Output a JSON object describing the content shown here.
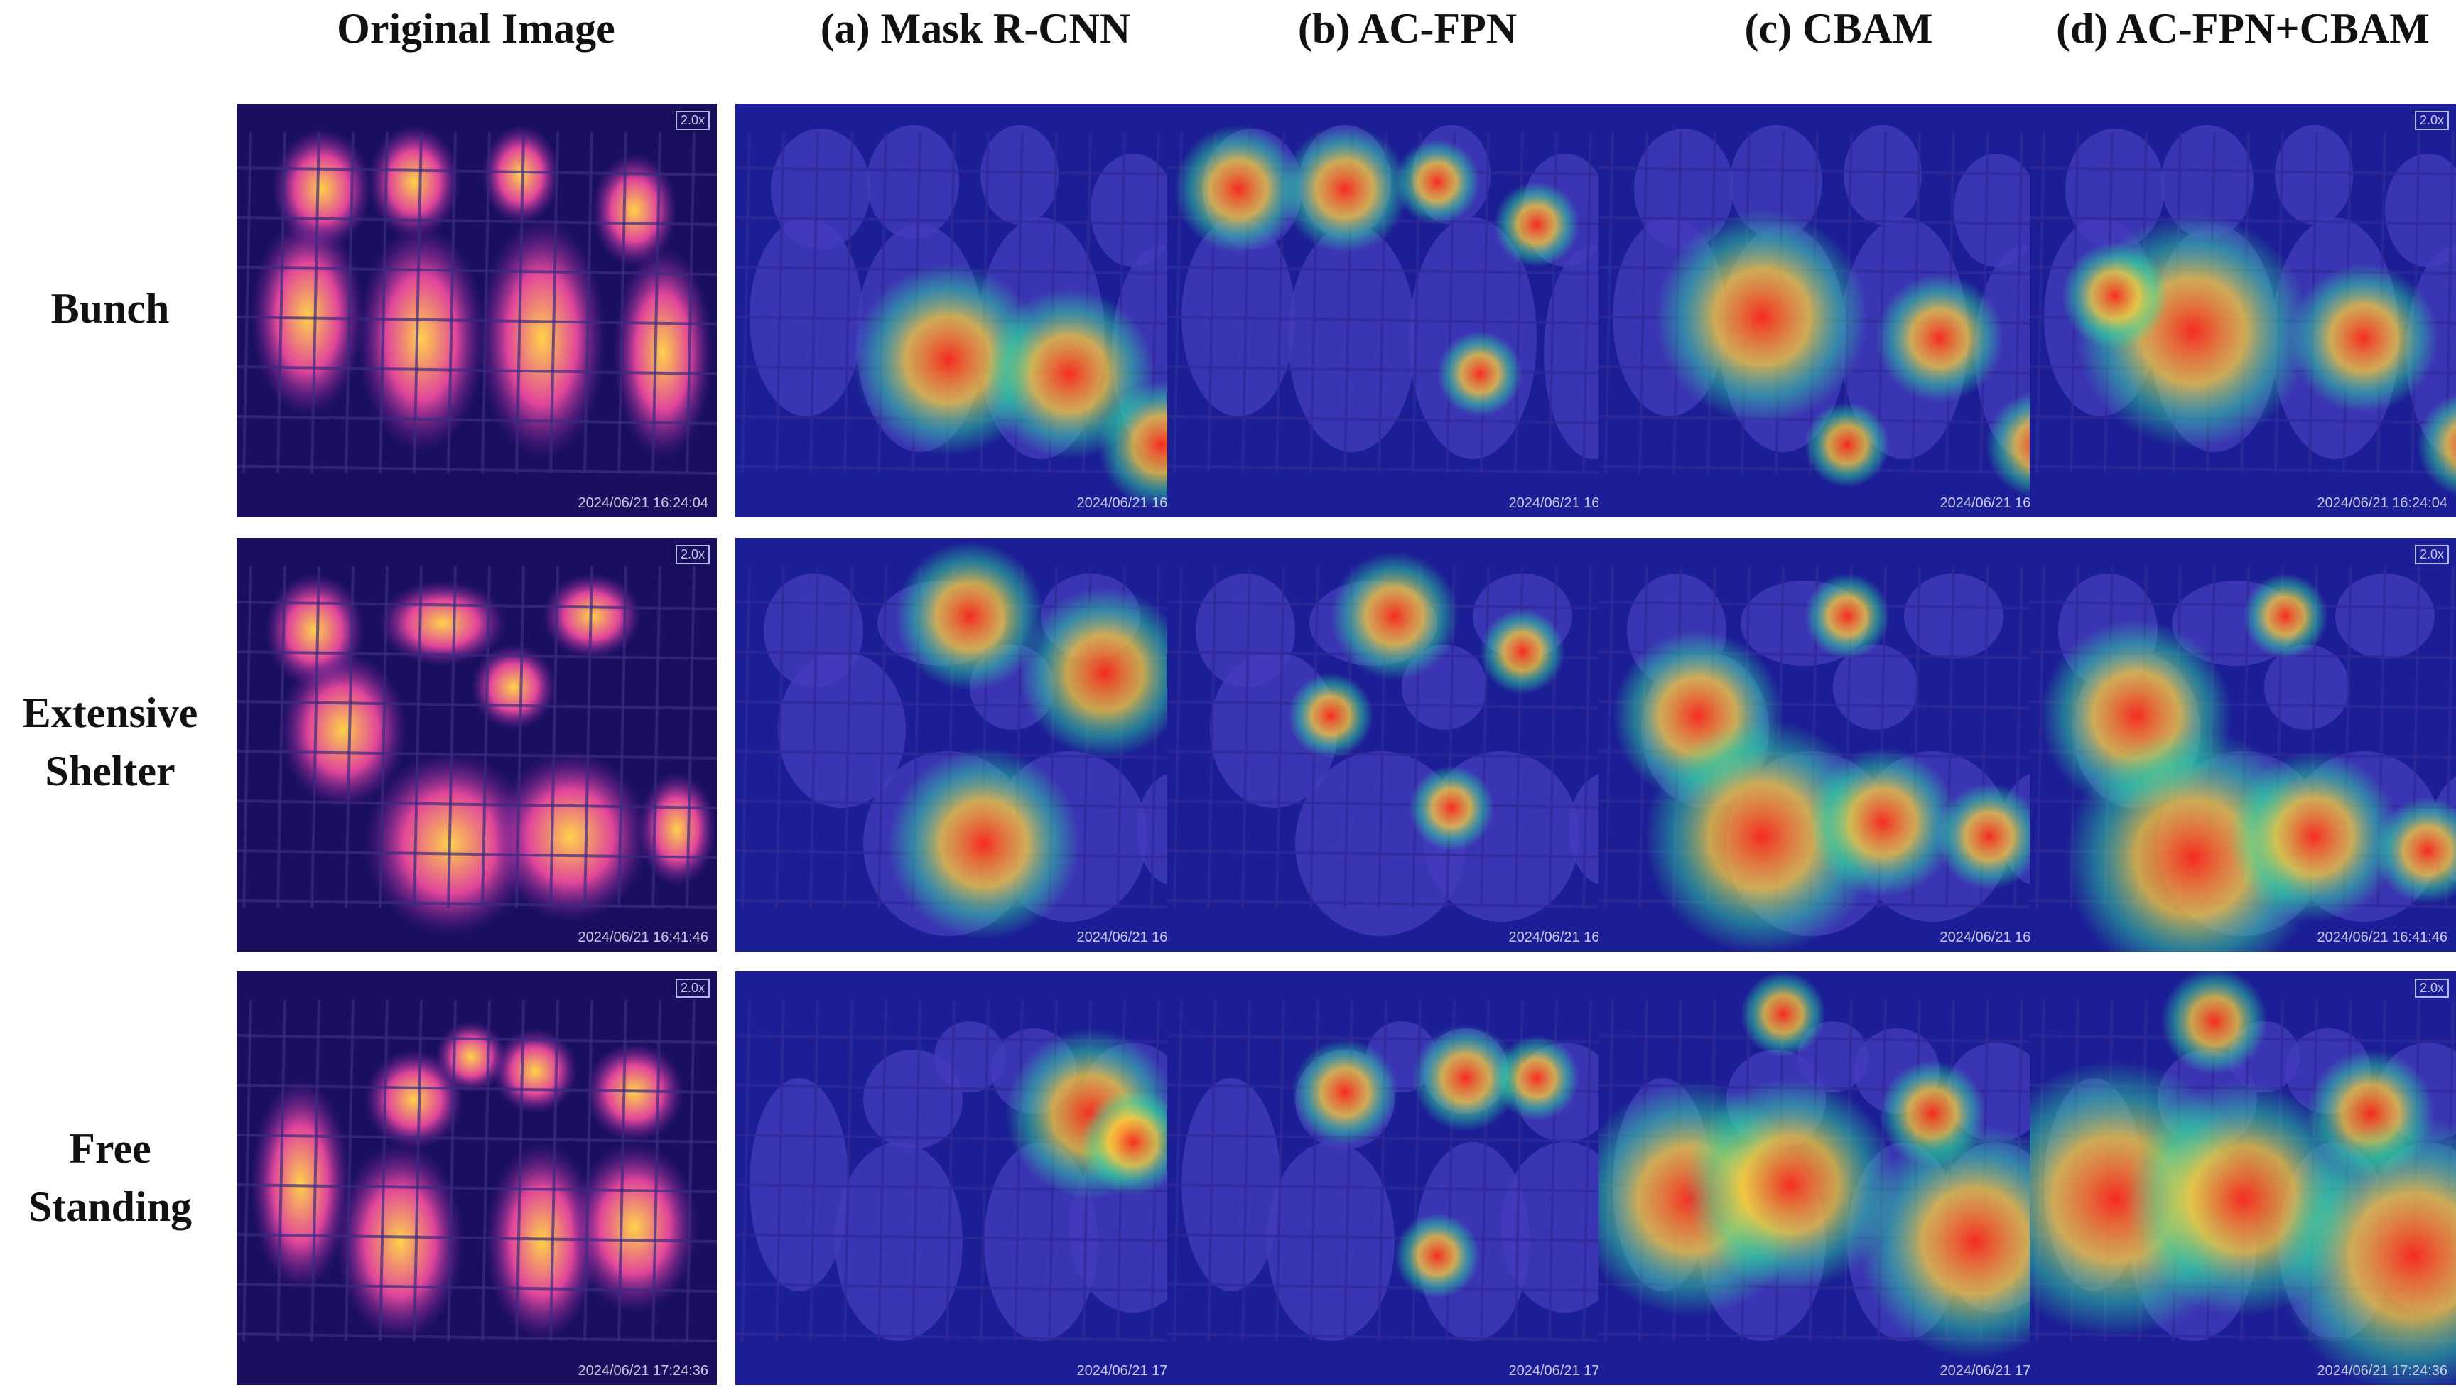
{
  "columns": [
    "Original Image",
    "(a) Mask R-CNN",
    "(b) AC-FPN",
    "(c) CBAM",
    "(d) AC-FPN+CBAM"
  ],
  "rows": [
    {
      "label_line1": "Bunch",
      "label_line2": "",
      "timestamp": "2024/06/21 16:24:04"
    },
    {
      "label_line1": "Extensive",
      "label_line2": "Shelter",
      "timestamp": "2024/06/21 16:41:46"
    },
    {
      "label_line1": "Free",
      "label_line2": "Standing",
      "timestamp": "2024/06/21 17:24:36"
    }
  ],
  "zoom_badge": "2.0x",
  "colors": {
    "thermal_background": "#1a0f5e",
    "thermal_hot": "#ffd24a",
    "heatmap_hot": "#ff2a1a",
    "heatmap_cold": "#1c28c8"
  }
}
